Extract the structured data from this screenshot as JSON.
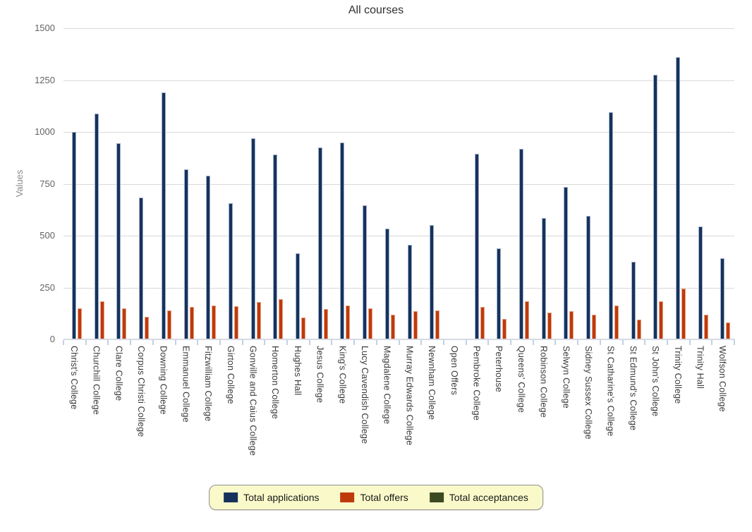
{
  "chart_data": {
    "type": "bar",
    "title": "All courses",
    "ylabel": "Values",
    "xlabel": "",
    "ylim": [
      0,
      1500
    ],
    "yticks": [
      0,
      250,
      500,
      750,
      1000,
      1250,
      1500
    ],
    "grid": true,
    "legend_position": "bottom",
    "categories": [
      "Christ's College",
      "Churchill College",
      "Clare College",
      "Corpus Christi College",
      "Downing College",
      "Emmanuel College",
      "Fitzwilliam College",
      "Girton College",
      "Gonville and Caius College",
      "Homerton College",
      "Hughes Hall",
      "Jesus College",
      "King's College",
      "Lucy Cavendish College",
      "Magdalene College",
      "Murray Edwards College",
      "Newnham College",
      "Open Offers",
      "Pembroke College",
      "Peterhouse",
      "Queens' College",
      "Robinson College",
      "Selwyn College",
      "Sidney Sussex College",
      "St Catharine's College",
      "St Edmund's College",
      "St John's College",
      "Trinity College",
      "Trinity Hall",
      "Wolfson College"
    ],
    "series": [
      {
        "name": "Total applications",
        "color": "#16325c",
        "edge_color": "#9eaec7",
        "values": [
          1000,
          1090,
          945,
          685,
          1190,
          820,
          790,
          655,
          970,
          890,
          415,
          925,
          950,
          645,
          535,
          455,
          550,
          0,
          895,
          440,
          920,
          585,
          735,
          595,
          1095,
          375,
          1275,
          1360,
          545,
          390
        ]
      },
      {
        "name": "Total offers",
        "color": "#bf3a0b",
        "edge_color": "#e2a184",
        "values": [
          150,
          185,
          150,
          110,
          140,
          155,
          165,
          160,
          180,
          195,
          105,
          145,
          165,
          150,
          120,
          135,
          140,
          0,
          155,
          100,
          185,
          130,
          135,
          120,
          165,
          95,
          185,
          245,
          120,
          80
        ]
      },
      {
        "name": "Total acceptances",
        "color": "#3c4a21",
        "edge_color": "#9aa58a",
        "values": [
          0,
          0,
          0,
          0,
          0,
          0,
          0,
          0,
          0,
          0,
          0,
          0,
          0,
          0,
          0,
          0,
          0,
          0,
          0,
          0,
          0,
          0,
          0,
          0,
          0,
          0,
          0,
          0,
          0,
          0
        ]
      }
    ]
  }
}
